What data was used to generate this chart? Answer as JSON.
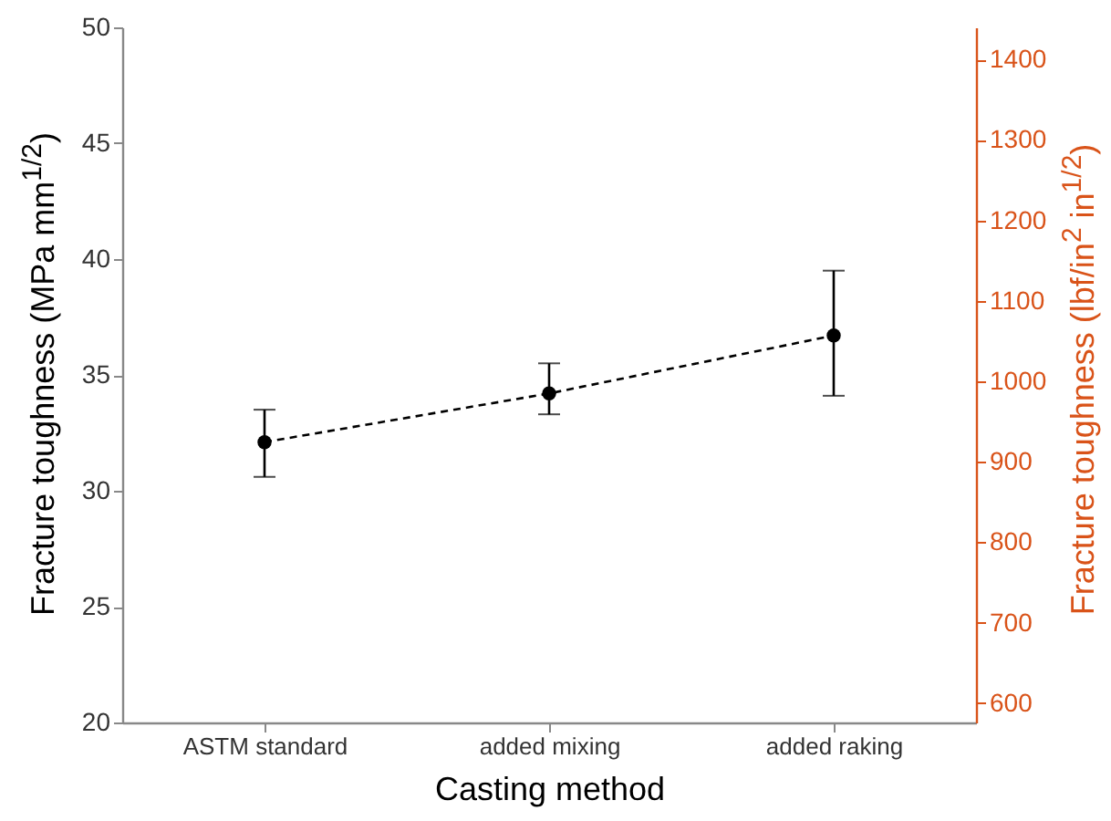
{
  "chart_data": {
    "type": "line",
    "xlabel": "Casting method",
    "ylabel": "Fracture toughness (MPa mm$^{1/2}$)",
    "y2label": "Fracture toughness (lbf/in$^{2}$ in$^{1/2}$)",
    "categories": [
      "ASTM standard",
      "added mixing",
      "added raking"
    ],
    "series": [
      {
        "color": "#000000",
        "values": [
          32.1,
          34.2,
          36.7
        ],
        "errors": [
          [
            30.6,
            33.5
          ],
          [
            33.3,
            35.5
          ],
          [
            34.1,
            39.5
          ]
        ]
      }
    ],
    "ylim": [
      20,
      50
    ],
    "yticks": [
      20,
      25,
      30,
      35,
      40,
      45,
      50
    ],
    "y2lim": [
      576,
      1440
    ],
    "y2ticks": [
      600,
      700,
      800,
      900,
      1000,
      1100,
      1200,
      1300,
      1400
    ],
    "marker": "circle",
    "line_style": "dashed"
  }
}
